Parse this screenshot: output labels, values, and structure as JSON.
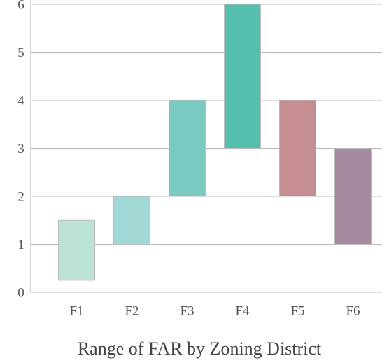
{
  "chart_data": {
    "type": "floating_bar",
    "title": "Range of FAR by Zoning District",
    "categories": [
      "F1",
      "F2",
      "F3",
      "F4",
      "F5",
      "F6"
    ],
    "low": [
      0.25,
      1,
      2,
      3,
      2,
      1
    ],
    "high": [
      1.5,
      2,
      4,
      6,
      4,
      3
    ],
    "colors": [
      "#bde3d9",
      "#9fd8d4",
      "#79cac0",
      "#55bfad",
      "#c48e92",
      "#a58a9f"
    ],
    "ylim": [
      0,
      6
    ],
    "yticks": [
      0,
      1,
      2,
      3,
      4,
      5,
      6
    ],
    "grid": true
  }
}
